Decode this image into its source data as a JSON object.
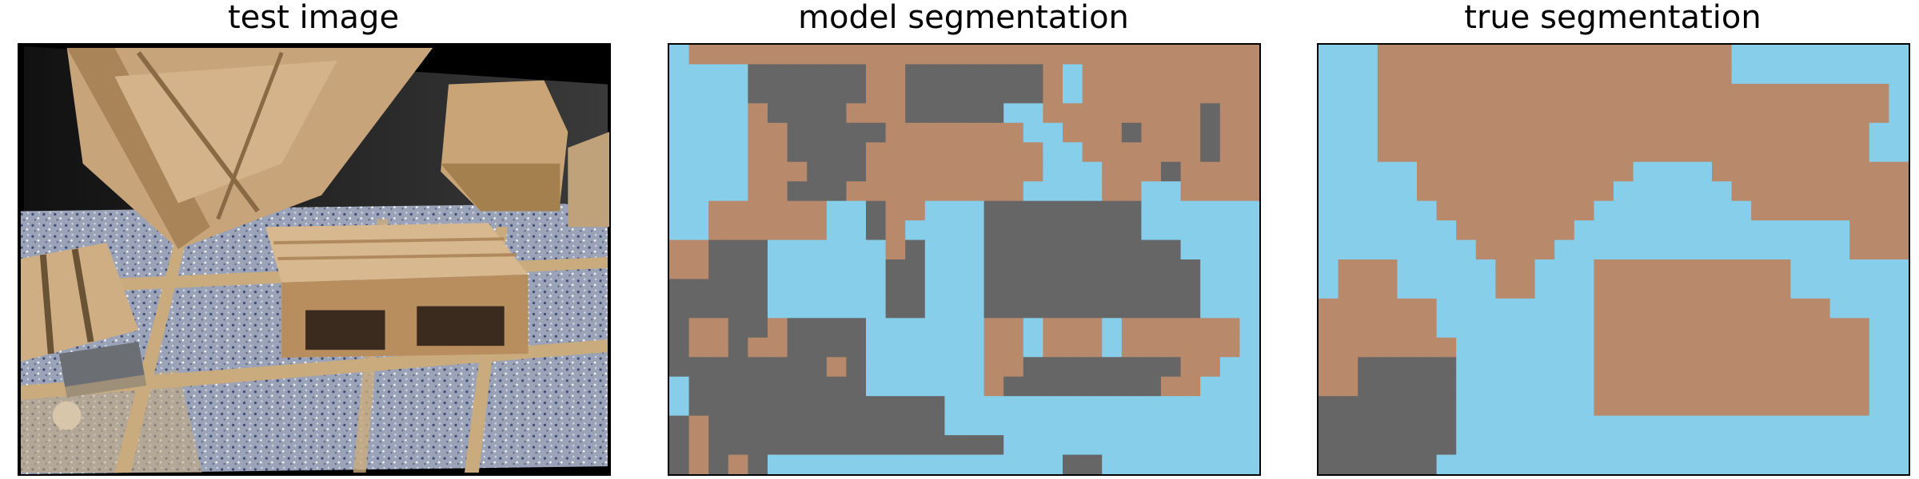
{
  "panels": {
    "test_image": {
      "title": "test image"
    },
    "model_segmentation": {
      "title": "model segmentation"
    },
    "true_segmentation": {
      "title": "true segmentation"
    }
  },
  "legend_colors": {
    "floor": "#87ceeb",
    "wood": "#b8896a",
    "dark": "#666666"
  },
  "grid_cols": 30,
  "grid_rows": 22,
  "model_mask": [
    "FWWWWWWWWWWWWWWWWWWWWWWWWWWWWW",
    "FFFFDDDDDDWWDDDDDDDWFWWWWWWWWW",
    "FFFFDDDDDDWWDDDDDDDWFWWWWWWWWW",
    "FFFFWDDDDWWWDDDDDFFWWWWWWWWDWW",
    "FFFFWWDDDDDWWWWWWWFFWWWDWWWDWW",
    "FFFFWWDDDDWWWWWWWWWFFWWWWWWDWW",
    "FFFFWWWDDDWWWWWWWWWFFFWWWDWWWW",
    "FFFFWWDDDWWWWWWWWWFFFFWWFFWWWW",
    "FFWWWWWWFFDWWFFFDDDDDDDDFFFFFF",
    "FFWWWWWWFFDWFFFFDDDDDDDDFFFFFF",
    "WWDDDFFFFFFWDFFFDDDDDDDDDDFFFF",
    "WWDDDFFFFFFDDFFFDDDDDDDDDDDFFF",
    "DDDDDFFFFFFDDFFFDDDDDDDDDDDFFF",
    "DDDDDFFFFFFDDFFFDDDDDDDDDDDFFF",
    "DWWDDWDDDDFFFFFFWWFWWWFWWWWWWF",
    "DWWDWWDDDDFFFFFFWWFWWWFWWWWWWF",
    "DDDDDDDDWDFFFFFFWWDDDDDDDDWWFF",
    "FDDDDDDDDDFFFFFFWDDDDDDDDWWFFF",
    "FDDDDDDDDDDDDDFFFFFFFFFFFFFFFF",
    "DWDDDDDDDDDDDDFFFFFFFFFFFFFFFF",
    "DWDDDDDDDDDDDDDDDFFFFFFFFFFFFF",
    "DWDWDFFFFFFFFFFFFFFFDDFFFFFFFF"
  ],
  "true_mask": [
    "FFFWWWWWWWWWWWWWWWWWWFFFFFFFFF",
    "FFFWWWWWWWWWWWWWWWWWWFFFFFFFFF",
    "FFFWWWWWWWWWWWWWWWWWWWWWWWWWWF",
    "FFFWWWWWWWWWWWWWWWWWWWWWWWWWWF",
    "FFFWWWWWWWWWWWWWWWWWWWWWWWWWFF",
    "FFFWWWWWWWWWWWWWWWWWWWWWWWWWFF",
    "FFFFFWWWWWWWWWWWFFFFWWWWWWWWWW",
    "FFFFFWWWWWWWWWWFFFFFFWWWWWWWWW",
    "FFFFFFWWWWWWWWFFFFFFFFWWWWWWWW",
    "FFFFFFFWWWWWWFFFFFFFFFFFFFFWWW",
    "FFFFFFFFWWWWFFFFFFFFFFFFFFFWWW",
    "FWWWFFFFFWWFFFWWWWWWWWWWFFFFFF",
    "FWWWFFFFFWWFFFWWWWWWWWWWFFFFFF",
    "WWWWWWFFFFFFFFWWWWWWWWWWWWFFFF",
    "WWWWWWFFFFFFFFWWWWWWWWWWWWWWFF",
    "WWWWWWWFFFFFFFWWWWWWWWWWWWWWFF",
    "WWDDDDDFFFFFFFWWWWWWWWWWWWWWFF",
    "WWDDDDDFFFFFFFWWWWWWWWWWWWWWFF",
    "DDDDDDDFFFFFFFWWWWWWWWWWWWWWFF",
    "DDDDDDDFFFFFFFFFFFFFFFFFFFFFFF",
    "DDDDDDDFFFFFFFFFFFFFFFFFFFFFFF",
    "DDDDDDFFFFFFFFFFFFFFFFFFFFFFFF"
  ]
}
